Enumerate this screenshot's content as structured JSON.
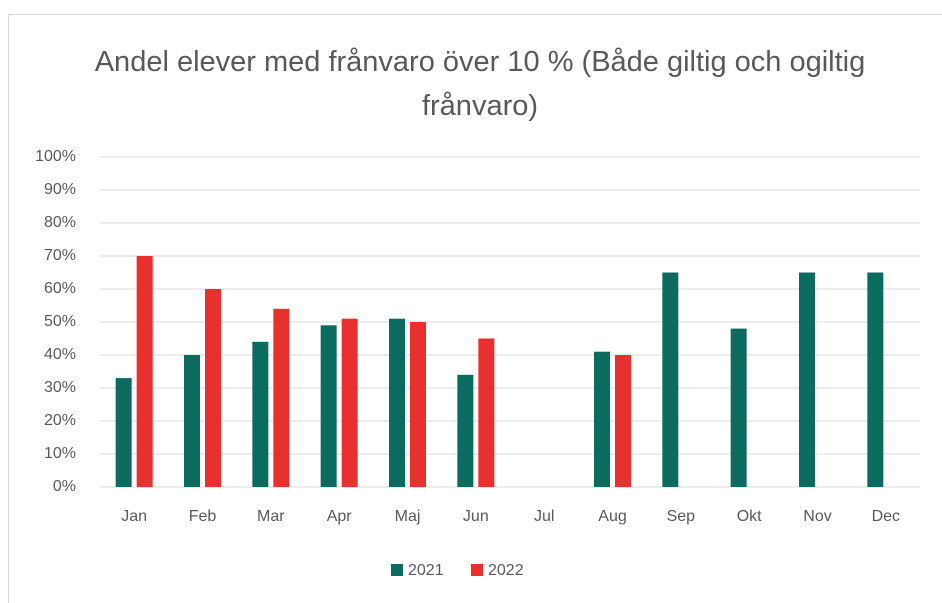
{
  "chart_data": {
    "type": "bar",
    "title": "Andel elever med frånvaro över 10 % (Både giltig och ogiltig frånvaro)",
    "categories": [
      "Jan",
      "Feb",
      "Mar",
      "Apr",
      "Maj",
      "Jun",
      "Jul",
      "Aug",
      "Sep",
      "Okt",
      "Nov",
      "Dec"
    ],
    "series": [
      {
        "name": "2021",
        "color": "#0b6b5e",
        "values": [
          33,
          40,
          44,
          49,
          51,
          34,
          null,
          41,
          65,
          48,
          65,
          65
        ]
      },
      {
        "name": "2022",
        "color": "#e8302f",
        "values": [
          70,
          60,
          54,
          51,
          50,
          45,
          null,
          40,
          null,
          null,
          null,
          null
        ]
      }
    ],
    "ylim": [
      0,
      100
    ],
    "yticks": [
      {
        "value": 0,
        "label": "0%"
      },
      {
        "value": 10,
        "label": "10%"
      },
      {
        "value": 20,
        "label": "20%"
      },
      {
        "value": 30,
        "label": "30%"
      },
      {
        "value": 40,
        "label": "40%"
      },
      {
        "value": 50,
        "label": "50%"
      },
      {
        "value": 60,
        "label": "60%"
      },
      {
        "value": 70,
        "label": "70%"
      },
      {
        "value": 80,
        "label": "80%"
      },
      {
        "value": 90,
        "label": "90%"
      },
      {
        "value": 100,
        "label": "100%"
      }
    ],
    "grid": true,
    "legend": "bottom"
  }
}
